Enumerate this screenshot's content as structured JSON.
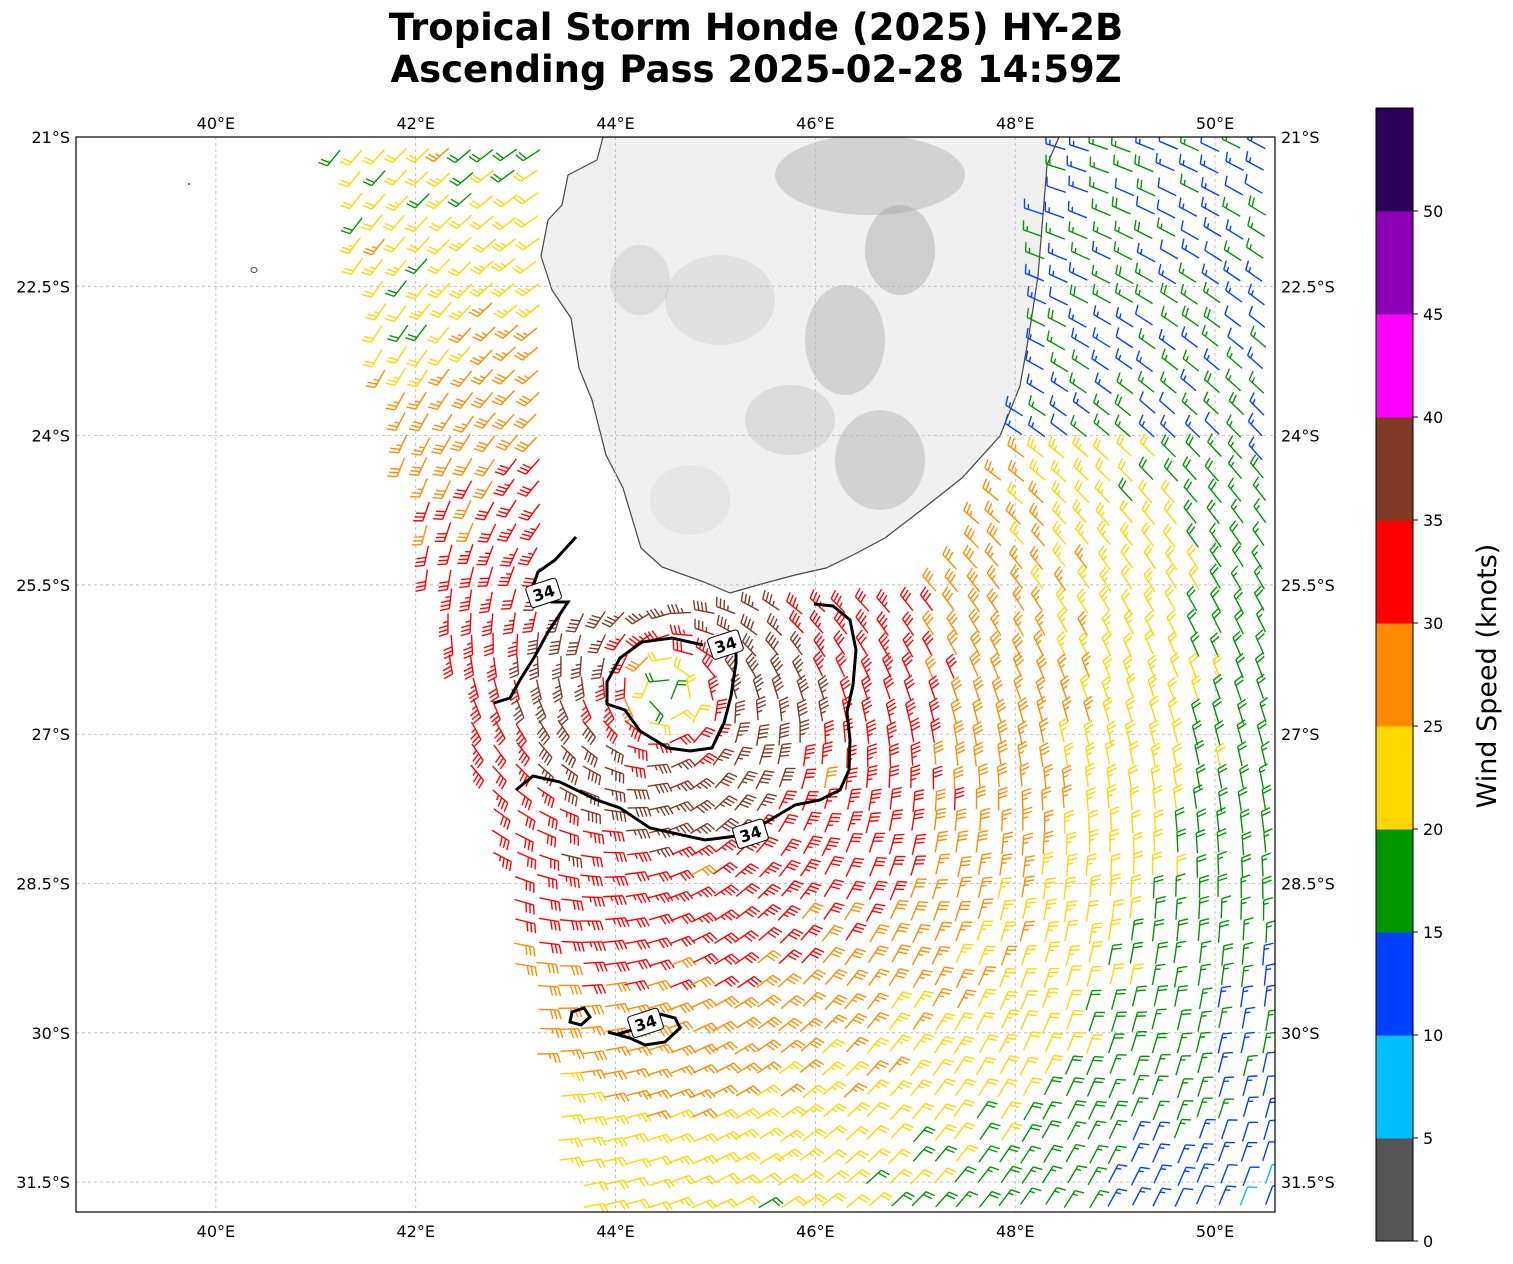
{
  "title": {
    "line1": "Tropical Storm Honde (2025) HY-2B",
    "line2": "Ascending Pass 2025-02-28 14:59Z"
  },
  "map": {
    "lon_range": [
      38.6,
      50.6
    ],
    "lat_range": [
      -31.8,
      -21.0
    ],
    "lon_ticks": [
      {
        "value": 40,
        "label": "40°E"
      },
      {
        "value": 42,
        "label": "42°E"
      },
      {
        "value": 44,
        "label": "44°E"
      },
      {
        "value": 46,
        "label": "46°E"
      },
      {
        "value": 48,
        "label": "48°E"
      },
      {
        "value": 50,
        "label": "50°E"
      }
    ],
    "lat_ticks": [
      {
        "value": -21.0,
        "label": "21°S"
      },
      {
        "value": -22.5,
        "label": "22.5°S"
      },
      {
        "value": -24.0,
        "label": "24°S"
      },
      {
        "value": -25.5,
        "label": "25.5°S"
      },
      {
        "value": -27.0,
        "label": "27°S"
      },
      {
        "value": -28.5,
        "label": "28.5°S"
      },
      {
        "value": -30.0,
        "label": "30°S"
      },
      {
        "value": -31.5,
        "label": "31.5°S"
      }
    ],
    "gridlines": true,
    "land": "Madagascar",
    "land_color": "#f0f0f0",
    "coast_color": "#444444",
    "storm_center": {
      "lon": 44.5,
      "lat": -26.6
    },
    "contour_level": 34,
    "contour_labels": [
      {
        "text": "34",
        "lon": 43.28,
        "lat": -25.58
      },
      {
        "text": "34",
        "lon": 45.1,
        "lat": -26.1
      },
      {
        "text": "34",
        "lon": 45.35,
        "lat": -28.0
      },
      {
        "text": "34",
        "lon": 44.3,
        "lat": -29.9
      }
    ]
  },
  "colorbar": {
    "label": "Wind Speed (knots)",
    "bins": [
      {
        "from": 0,
        "to": 5,
        "color": "#555555"
      },
      {
        "from": 5,
        "to": 10,
        "color": "#00bfff"
      },
      {
        "from": 10,
        "to": 15,
        "color": "#0040ff"
      },
      {
        "from": 15,
        "to": 20,
        "color": "#009600"
      },
      {
        "from": 20,
        "to": 25,
        "color": "#ffd700"
      },
      {
        "from": 25,
        "to": 30,
        "color": "#ff8c00"
      },
      {
        "from": 30,
        "to": 35,
        "color": "#ff0000"
      },
      {
        "from": 35,
        "to": 40,
        "color": "#803a25"
      },
      {
        "from": 40,
        "to": 45,
        "color": "#ff00ff"
      },
      {
        "from": 45,
        "to": 50,
        "color": "#8b00b4"
      },
      {
        "from": 50,
        "to": 55,
        "color": "#2d005a"
      }
    ],
    "ticks": [
      "0",
      "5",
      "10",
      "15",
      "20",
      "25",
      "30",
      "35",
      "40",
      "45",
      "50"
    ]
  }
}
